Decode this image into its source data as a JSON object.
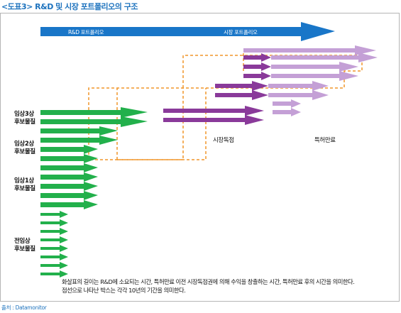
{
  "title": "<도표3> R&D 및 시장 포트폴리오의 구조",
  "top_arrow": {
    "left_label": "R&D 포트폴리오",
    "right_label": "시장 포트폴리오",
    "color": "#1976c8"
  },
  "stage_labels": [
    {
      "line1": "임상3상",
      "line2": "후보물질"
    },
    {
      "line1": "임상2상",
      "line2": "후보물질"
    },
    {
      "line1": "임상1상",
      "line2": "후보물질"
    },
    {
      "line1": "전임상",
      "line2": "후보물질"
    }
  ],
  "milestones": {
    "market_exclusivity": "시장독점",
    "patent_expiry": "특허만료"
  },
  "note": {
    "line1": "화살표의 길이는 R&D에 소요되는 시간, 특허만료 이전 시장독점권에 의해 수익을 창출하는 시간, 특허만료 후의 시간을 의미한다.",
    "line2": "점선으로 나타난 박스는 각각 10년의 기간을 의미한다."
  },
  "source": "출처 : Datamonitor",
  "colors": {
    "green": "#22b04b",
    "purple_dark": "#8a3a9a",
    "purple_mid": "#a36bbf",
    "purple_light": "#c4a0d6",
    "dashed_box": "#f0962a"
  }
}
